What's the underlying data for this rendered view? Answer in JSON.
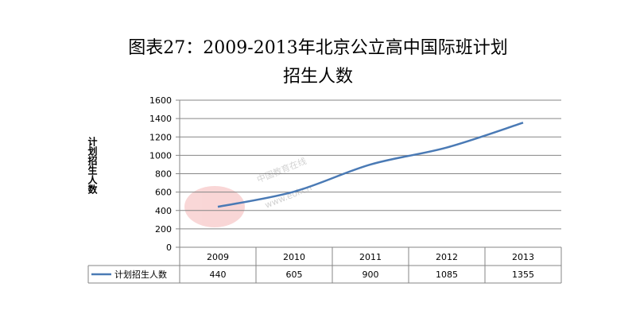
{
  "chart_data": {
    "type": "line",
    "title": "图表27：2009-2013年北京公立高中国际班计划",
    "subtitle": "招生人数",
    "ylabel": "计划招生人数",
    "xlabel": "",
    "categories": [
      "2009",
      "2010",
      "2011",
      "2012",
      "2013"
    ],
    "series": [
      {
        "name": "计划招生人数",
        "values": [
          440,
          605,
          900,
          1085,
          1355
        ],
        "color": "#4a7ab5"
      }
    ],
    "ylim": [
      0,
      1600
    ],
    "yticks": [
      0,
      200,
      400,
      600,
      800,
      1000,
      1200,
      1400,
      1600
    ],
    "grid": true,
    "legend": "data-table-left",
    "data_table": true
  },
  "watermark": {
    "text": "中国教育在线",
    "logo": "eol-logo",
    "url": "www.eol.cn"
  },
  "colors": {
    "series": "#4a7ab5",
    "grid": "#868686",
    "axis": "#868686"
  }
}
